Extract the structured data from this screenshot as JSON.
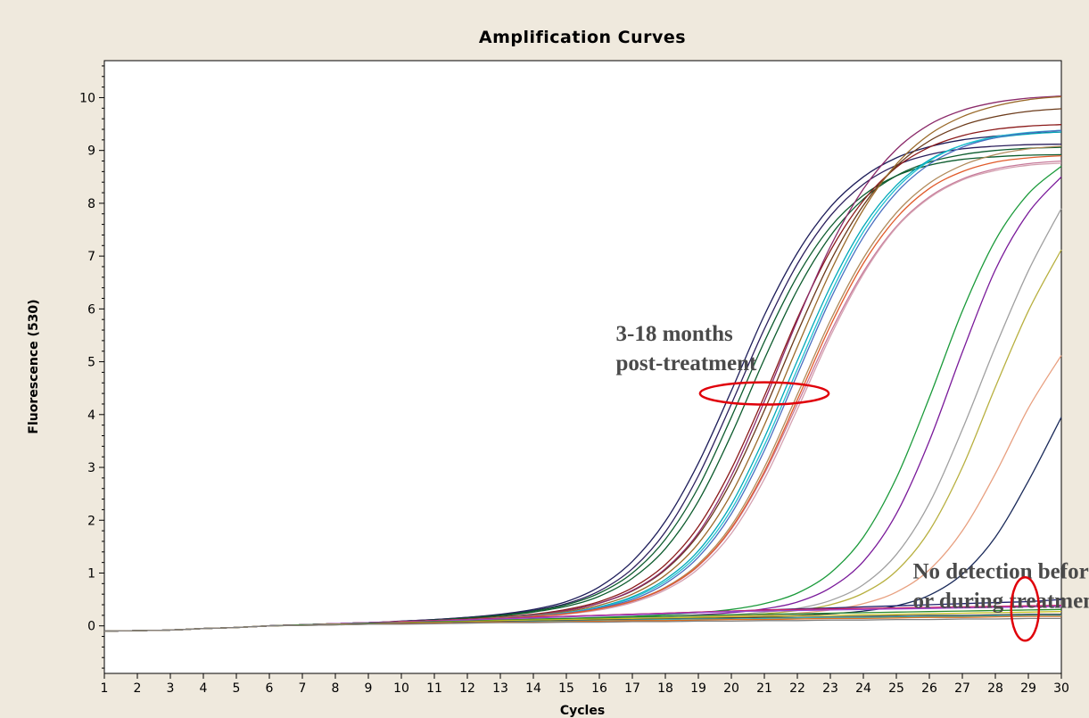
{
  "chart_data": {
    "type": "line",
    "title": "Amplification Curves",
    "xlabel": "Cycles",
    "ylabel": "Fluorescence (530)",
    "xlim": [
      1,
      30
    ],
    "ylim": [
      -0.9,
      10.7
    ],
    "xticks": [
      1,
      2,
      3,
      4,
      5,
      6,
      7,
      8,
      9,
      10,
      11,
      12,
      13,
      14,
      15,
      16,
      17,
      18,
      19,
      20,
      21,
      22,
      23,
      24,
      25,
      26,
      27,
      28,
      29,
      30
    ],
    "yticks": [
      0,
      1,
      2,
      3,
      4,
      5,
      6,
      7,
      8,
      9,
      10
    ],
    "grid": false,
    "legend": "none",
    "annotations": [
      {
        "lines": [
          "3-18 months",
          "post-treatment"
        ],
        "x": 16.5,
        "y": 5.4
      },
      {
        "lines": [
          "No detection before",
          "or during treatment"
        ],
        "x": 25.5,
        "y": 0.9
      }
    ],
    "highlights": [
      {
        "shape": "ellipse",
        "cx": 21.0,
        "cy": 4.4,
        "rx": 1.95,
        "ry": 0.21,
        "color": "#e0000a"
      },
      {
        "shape": "ellipse",
        "cx": 28.9,
        "cy": 0.32,
        "rx": 0.42,
        "ry": 0.6,
        "color": "#e0000a"
      }
    ],
    "series": [
      {
        "color": "#1e1e5a",
        "values": [
          -0.08,
          -0.05,
          -0.03,
          0.0,
          0.02,
          0.04,
          0.06,
          0.09,
          0.12,
          0.16,
          0.22,
          0.31,
          0.46,
          0.74,
          1.22,
          1.98,
          3.08,
          4.45,
          5.88,
          7.06,
          7.93,
          8.5,
          8.86,
          9.07,
          9.2,
          9.27,
          9.32,
          9.35
        ]
      },
      {
        "color": "#2b1f5c",
        "values": [
          -0.08,
          -0.05,
          -0.03,
          0.0,
          0.02,
          0.04,
          0.06,
          0.09,
          0.12,
          0.16,
          0.21,
          0.29,
          0.42,
          0.66,
          1.08,
          1.78,
          2.84,
          4.2,
          5.62,
          6.85,
          7.76,
          8.36,
          8.72,
          8.92,
          9.03,
          9.08,
          9.11,
          9.12
        ]
      },
      {
        "color": "#0d5c2e",
        "values": [
          -0.08,
          -0.05,
          -0.03,
          0.0,
          0.02,
          0.04,
          0.06,
          0.08,
          0.11,
          0.15,
          0.2,
          0.28,
          0.4,
          0.62,
          1.0,
          1.64,
          2.62,
          3.95,
          5.38,
          6.62,
          7.55,
          8.15,
          8.52,
          8.72,
          8.83,
          8.88,
          8.91,
          8.92
        ]
      },
      {
        "color": "#0d5c2e",
        "values": [
          -0.08,
          -0.05,
          -0.03,
          0.0,
          0.02,
          0.04,
          0.06,
          0.08,
          0.11,
          0.14,
          0.19,
          0.26,
          0.37,
          0.56,
          0.9,
          1.46,
          2.36,
          3.62,
          5.05,
          6.36,
          7.38,
          8.08,
          8.52,
          8.78,
          8.92,
          9.0,
          9.04,
          9.06
        ]
      },
      {
        "color": "#8b1a1a",
        "values": [
          -0.08,
          -0.05,
          -0.03,
          0.0,
          0.02,
          0.04,
          0.06,
          0.08,
          0.1,
          0.13,
          0.17,
          0.22,
          0.31,
          0.46,
          0.72,
          1.16,
          1.88,
          2.97,
          4.35,
          5.82,
          7.1,
          8.05,
          8.68,
          9.06,
          9.28,
          9.4,
          9.46,
          9.49
        ]
      },
      {
        "color": "#6b3a1a",
        "values": [
          -0.08,
          -0.05,
          -0.03,
          0.0,
          0.02,
          0.04,
          0.06,
          0.08,
          0.1,
          0.13,
          0.16,
          0.21,
          0.29,
          0.43,
          0.66,
          1.06,
          1.72,
          2.74,
          4.08,
          5.55,
          6.9,
          7.96,
          8.7,
          9.18,
          9.47,
          9.64,
          9.74,
          9.79
        ]
      },
      {
        "color": "#8b2a6a",
        "values": [
          -0.08,
          -0.05,
          -0.03,
          0.0,
          0.02,
          0.04,
          0.06,
          0.08,
          0.1,
          0.12,
          0.16,
          0.21,
          0.29,
          0.43,
          0.67,
          1.08,
          1.76,
          2.84,
          4.25,
          5.78,
          7.18,
          8.27,
          9.02,
          9.49,
          9.76,
          9.91,
          9.99,
          10.03
        ]
      },
      {
        "color": "#9a6a2a",
        "values": [
          -0.08,
          -0.05,
          -0.03,
          0.0,
          0.02,
          0.04,
          0.06,
          0.08,
          0.1,
          0.12,
          0.16,
          0.2,
          0.27,
          0.39,
          0.6,
          0.96,
          1.56,
          2.5,
          3.8,
          5.28,
          6.7,
          7.88,
          8.74,
          9.3,
          9.64,
          9.84,
          9.96,
          10.02
        ]
      },
      {
        "color": "#00a8b8",
        "values": [
          -0.08,
          -0.05,
          -0.03,
          0.0,
          0.02,
          0.04,
          0.06,
          0.08,
          0.1,
          0.12,
          0.15,
          0.19,
          0.25,
          0.36,
          0.55,
          0.88,
          1.42,
          2.3,
          3.56,
          5.02,
          6.42,
          7.56,
          8.34,
          8.82,
          9.1,
          9.24,
          9.31,
          9.35
        ]
      },
      {
        "color": "#20c0d0",
        "values": [
          -0.08,
          -0.05,
          -0.03,
          0.0,
          0.02,
          0.04,
          0.06,
          0.08,
          0.1,
          0.12,
          0.15,
          0.19,
          0.25,
          0.35,
          0.53,
          0.84,
          1.36,
          2.2,
          3.42,
          4.86,
          6.28,
          7.46,
          8.28,
          8.8,
          9.1,
          9.26,
          9.34,
          9.38
        ]
      },
      {
        "color": "#4a6ec0",
        "values": [
          -0.08,
          -0.05,
          -0.03,
          0.0,
          0.02,
          0.04,
          0.06,
          0.08,
          0.1,
          0.12,
          0.15,
          0.19,
          0.24,
          0.34,
          0.5,
          0.8,
          1.3,
          2.12,
          3.32,
          4.76,
          6.18,
          7.36,
          8.2,
          8.74,
          9.06,
          9.24,
          9.33,
          9.38
        ]
      },
      {
        "color": "#b08a5a",
        "values": [
          -0.08,
          -0.05,
          -0.03,
          0.0,
          0.02,
          0.04,
          0.06,
          0.08,
          0.1,
          0.12,
          0.15,
          0.18,
          0.23,
          0.32,
          0.47,
          0.73,
          1.17,
          1.9,
          3.0,
          4.38,
          5.78,
          6.96,
          7.82,
          8.38,
          8.72,
          8.92,
          9.03,
          9.08
        ]
      },
      {
        "color": "#c77a9a",
        "values": [
          -0.08,
          -0.05,
          -0.03,
          0.0,
          0.02,
          0.04,
          0.06,
          0.08,
          0.1,
          0.12,
          0.14,
          0.18,
          0.23,
          0.31,
          0.46,
          0.71,
          1.13,
          1.83,
          2.88,
          4.2,
          5.55,
          6.7,
          7.56,
          8.12,
          8.46,
          8.65,
          8.75,
          8.8
        ]
      },
      {
        "color": "#d4a0b0",
        "values": [
          -0.08,
          -0.05,
          -0.03,
          0.0,
          0.02,
          0.04,
          0.06,
          0.08,
          0.1,
          0.12,
          0.14,
          0.17,
          0.22,
          0.3,
          0.44,
          0.68,
          1.08,
          1.75,
          2.78,
          4.1,
          5.48,
          6.66,
          7.54,
          8.1,
          8.44,
          8.62,
          8.72,
          8.76
        ]
      },
      {
        "color": "#e05a2a",
        "values": [
          -0.08,
          -0.05,
          -0.03,
          0.0,
          0.02,
          0.04,
          0.06,
          0.08,
          0.1,
          0.12,
          0.14,
          0.18,
          0.23,
          0.32,
          0.47,
          0.72,
          1.14,
          1.85,
          2.92,
          4.28,
          5.68,
          6.86,
          7.72,
          8.28,
          8.6,
          8.78,
          8.86,
          8.9
        ]
      },
      {
        "color": "#1a9a3a",
        "values": [
          -0.08,
          -0.05,
          -0.03,
          0.0,
          0.02,
          0.04,
          0.05,
          0.07,
          0.08,
          0.1,
          0.11,
          0.13,
          0.14,
          0.16,
          0.18,
          0.21,
          0.25,
          0.31,
          0.42,
          0.62,
          1.0,
          1.68,
          2.8,
          4.32,
          5.96,
          7.3,
          8.18,
          8.7
        ]
      },
      {
        "color": "#7a1a9a",
        "values": [
          -0.08,
          -0.05,
          -0.03,
          0.0,
          0.02,
          0.04,
          0.05,
          0.07,
          0.08,
          0.1,
          0.11,
          0.12,
          0.13,
          0.15,
          0.16,
          0.18,
          0.21,
          0.25,
          0.32,
          0.45,
          0.72,
          1.22,
          2.12,
          3.5,
          5.18,
          6.74,
          7.82,
          8.5
        ]
      },
      {
        "color": "#a0a0a0",
        "values": [
          -0.08,
          -0.05,
          -0.03,
          0.0,
          0.02,
          0.04,
          0.05,
          0.06,
          0.08,
          0.09,
          0.1,
          0.11,
          0.12,
          0.13,
          0.15,
          0.16,
          0.18,
          0.21,
          0.26,
          0.33,
          0.48,
          0.78,
          1.35,
          2.32,
          3.72,
          5.28,
          6.72,
          7.9
        ]
      },
      {
        "color": "#b8b040",
        "values": [
          -0.08,
          -0.05,
          -0.03,
          0.0,
          0.02,
          0.04,
          0.05,
          0.06,
          0.07,
          0.09,
          0.1,
          0.11,
          0.12,
          0.13,
          0.14,
          0.15,
          0.17,
          0.19,
          0.23,
          0.29,
          0.4,
          0.62,
          1.04,
          1.8,
          3.0,
          4.52,
          5.96,
          7.12
        ]
      },
      {
        "color": "#e8a080",
        "values": [
          -0.08,
          -0.05,
          -0.03,
          0.0,
          0.02,
          0.04,
          0.05,
          0.06,
          0.07,
          0.08,
          0.09,
          0.1,
          0.11,
          0.12,
          0.13,
          0.14,
          0.16,
          0.18,
          0.2,
          0.24,
          0.3,
          0.42,
          0.64,
          1.06,
          1.8,
          2.88,
          4.12,
          5.12
        ]
      },
      {
        "color": "#1a2a5a",
        "values": [
          -0.08,
          -0.05,
          -0.03,
          0.0,
          0.02,
          0.04,
          0.05,
          0.06,
          0.07,
          0.08,
          0.09,
          0.1,
          0.11,
          0.12,
          0.13,
          0.14,
          0.15,
          0.16,
          0.18,
          0.2,
          0.23,
          0.28,
          0.38,
          0.58,
          0.98,
          1.68,
          2.74,
          3.95
        ]
      },
      {
        "color": "#1e1e6a",
        "values": [
          -0.08,
          -0.05,
          -0.03,
          0.0,
          0.02,
          0.04,
          0.06,
          0.08,
          0.1,
          0.12,
          0.14,
          0.16,
          0.18,
          0.2,
          0.22,
          0.24,
          0.26,
          0.28,
          0.3,
          0.32,
          0.34,
          0.36,
          0.38,
          0.4,
          0.42,
          0.44,
          0.46,
          0.5
        ]
      },
      {
        "color": "#cc2266",
        "values": [
          -0.08,
          -0.05,
          -0.03,
          0.0,
          0.02,
          0.04,
          0.06,
          0.08,
          0.1,
          0.12,
          0.14,
          0.16,
          0.18,
          0.2,
          0.22,
          0.24,
          0.26,
          0.28,
          0.3,
          0.31,
          0.32,
          0.33,
          0.34,
          0.35,
          0.36,
          0.37,
          0.38,
          0.39
        ]
      },
      {
        "color": "#9a44cc",
        "values": [
          -0.08,
          -0.05,
          -0.03,
          0.0,
          0.02,
          0.04,
          0.06,
          0.07,
          0.09,
          0.11,
          0.13,
          0.15,
          0.17,
          0.19,
          0.21,
          0.23,
          0.25,
          0.27,
          0.28,
          0.29,
          0.3,
          0.31,
          0.32,
          0.33,
          0.34,
          0.35,
          0.36,
          0.37
        ]
      },
      {
        "color": "#2a8a2a",
        "values": [
          -0.08,
          -0.05,
          -0.03,
          0.0,
          0.02,
          0.03,
          0.05,
          0.06,
          0.08,
          0.09,
          0.11,
          0.12,
          0.14,
          0.15,
          0.17,
          0.18,
          0.2,
          0.21,
          0.22,
          0.23,
          0.24,
          0.25,
          0.26,
          0.27,
          0.28,
          0.29,
          0.3,
          0.31
        ]
      },
      {
        "color": "#c8c020",
        "values": [
          -0.08,
          -0.05,
          -0.03,
          0.0,
          0.01,
          0.03,
          0.04,
          0.06,
          0.07,
          0.08,
          0.1,
          0.11,
          0.12,
          0.13,
          0.14,
          0.15,
          0.16,
          0.17,
          0.18,
          0.19,
          0.2,
          0.21,
          0.22,
          0.23,
          0.24,
          0.25,
          0.26,
          0.27
        ]
      },
      {
        "color": "#444444",
        "values": [
          -0.08,
          -0.05,
          -0.03,
          0.0,
          0.01,
          0.02,
          0.04,
          0.05,
          0.06,
          0.07,
          0.08,
          0.09,
          0.1,
          0.11,
          0.12,
          0.13,
          0.14,
          0.15,
          0.16,
          0.16,
          0.17,
          0.18,
          0.19,
          0.2,
          0.2,
          0.21,
          0.22,
          0.22
        ]
      },
      {
        "color": "#40b0b0",
        "values": [
          -0.08,
          -0.05,
          -0.03,
          0.0,
          0.01,
          0.02,
          0.03,
          0.04,
          0.05,
          0.06,
          0.07,
          0.08,
          0.09,
          0.1,
          0.11,
          0.12,
          0.13,
          0.13,
          0.14,
          0.15,
          0.16,
          0.16,
          0.17,
          0.18,
          0.18,
          0.19,
          0.2,
          0.2
        ]
      },
      {
        "color": "#e07020",
        "values": [
          -0.08,
          -0.05,
          -0.03,
          0.0,
          0.01,
          0.02,
          0.03,
          0.04,
          0.05,
          0.06,
          0.07,
          0.07,
          0.08,
          0.09,
          0.1,
          0.1,
          0.11,
          0.12,
          0.12,
          0.13,
          0.14,
          0.14,
          0.15,
          0.16,
          0.16,
          0.17,
          0.18,
          0.18
        ]
      },
      {
        "color": "#808080",
        "values": [
          -0.08,
          -0.05,
          -0.03,
          0.0,
          0.01,
          0.02,
          0.03,
          0.03,
          0.04,
          0.05,
          0.06,
          0.06,
          0.07,
          0.07,
          0.08,
          0.08,
          0.09,
          0.09,
          0.1,
          0.1,
          0.11,
          0.11,
          0.12,
          0.12,
          0.13,
          0.13,
          0.14,
          0.14
        ]
      }
    ]
  }
}
